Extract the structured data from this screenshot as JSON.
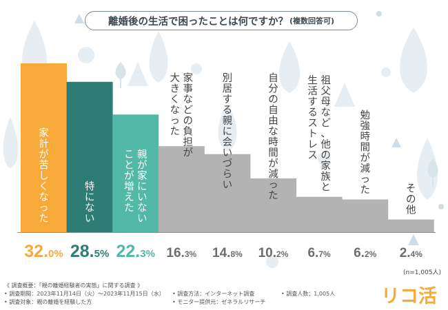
{
  "title": "離婚後の生活で困ったことは何ですか？",
  "title_suffix": "(複数回答可)",
  "sample_note": "(n=1,005人)",
  "footer": {
    "overview": "《 調査概要：「親の離婚経験者の実態」に関する調査 》",
    "period": "• 調査期間：2023年11月14日（火）～2023年11月15日（水）",
    "target": "• 調査対象：親の離婚を経験した方",
    "method": "• 調査方法：インターネット調査",
    "provider": "• モニター提供元：ゼネラルリサーチ",
    "count": "• 調査人数：1,005人"
  },
  "logo_text": "リコ活",
  "colors": {
    "orange": "#f7a93a",
    "teal_dark": "#2e7d74",
    "teal_light": "#53b8a5",
    "gray": "#b3b3b3"
  },
  "chart_data": {
    "type": "bar",
    "unit": "%",
    "ylim": [
      0,
      32
    ],
    "categories": [
      [
        "家計が苦しくなった"
      ],
      [
        "特にない"
      ],
      [
        "親が家にいない",
        "ことが増えた"
      ],
      [
        "家事などの負担が",
        "大きくなった"
      ],
      [
        "別居する親に会いづらい"
      ],
      [
        "自分の自由な時間が減った"
      ],
      [
        "祖父母など、他の家族と",
        "生活するストレス"
      ],
      [
        "勉強時間が減った"
      ],
      [
        "その他"
      ]
    ],
    "values": [
      32.0,
      28.5,
      22.3,
      16.3,
      14.8,
      10.2,
      6.7,
      6.2,
      2.4
    ],
    "bar_colors": [
      "#f7a93a",
      "#2e7d74",
      "#53b8a5",
      "#b3b3b3",
      "#b3b3b3",
      "#b3b3b3",
      "#b3b3b3",
      "#b3b3b3",
      "#b3b3b3"
    ],
    "value_colors": [
      "#f7a93a",
      "#2e7d74",
      "#53b8a5",
      "#6d6d6d",
      "#6d6d6d",
      "#6d6d6d",
      "#6d6d6d",
      "#6d6d6d",
      "#6d6d6d"
    ]
  }
}
